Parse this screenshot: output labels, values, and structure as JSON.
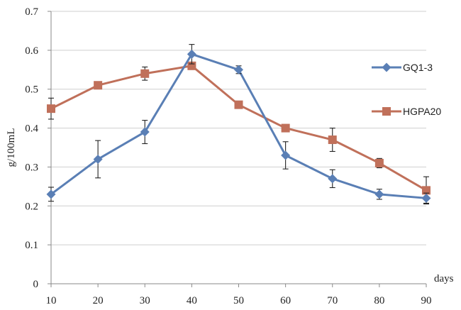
{
  "chart_data": {
    "type": "line",
    "title": "",
    "xlabel": "days",
    "ylabel": "g/100mL",
    "x": [
      10,
      20,
      30,
      40,
      50,
      60,
      70,
      80,
      90
    ],
    "xlim": [
      10,
      90
    ],
    "ylim": [
      0,
      0.7
    ],
    "yticks": [
      "0",
      "0.1",
      "0.2",
      "0.3",
      "0.4",
      "0.5",
      "0.6",
      "0.7"
    ],
    "xticks": [
      "10",
      "20",
      "30",
      "40",
      "50",
      "60",
      "70",
      "80",
      "90"
    ],
    "grid": "horizontal",
    "legend_position": "right",
    "series": [
      {
        "name": "GQ1-3",
        "marker": "diamond",
        "color": "#5a7fb5",
        "values": [
          0.23,
          0.32,
          0.39,
          0.59,
          0.55,
          0.33,
          0.27,
          0.23,
          0.22
        ],
        "errors": [
          0.018,
          0.048,
          0.03,
          0.025,
          0.01,
          0.035,
          0.023,
          0.013,
          0.013
        ]
      },
      {
        "name": "HGPA20",
        "marker": "square",
        "color": "#c0705a",
        "values": [
          0.45,
          0.51,
          0.54,
          0.56,
          0.46,
          0.4,
          0.37,
          0.31,
          0.24
        ],
        "errors": [
          0.027,
          0.0,
          0.017,
          0.0,
          0.0,
          0.0,
          0.03,
          0.012,
          0.035
        ]
      }
    ]
  }
}
